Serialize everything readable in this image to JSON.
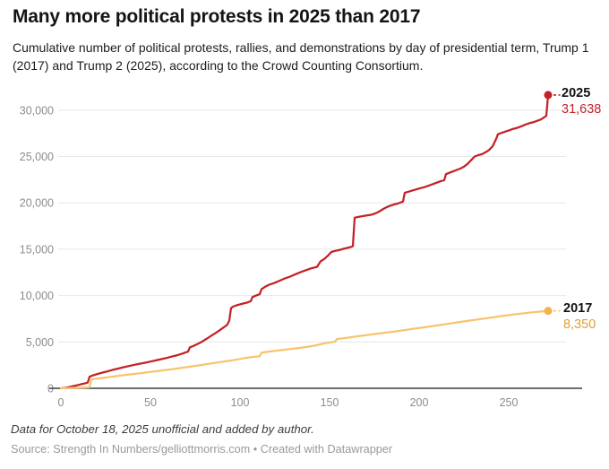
{
  "header": {
    "title": "Many more political protests in 2025 than 2017",
    "subtitle": "Cumulative number of political protests, rallies, and demonstrations by day of presidential term, Trump 1 (2017) and Trump 2 (2025), according to the Crowd Counting Consortium."
  },
  "footer": {
    "note": "Data for October 18, 2025 unofficial and added by author.",
    "source": "Source: Strength In Numbers/gelliottmorris.com • Created with Datawrapper"
  },
  "colors": {
    "accent_2025": "#c42127",
    "line_2017": "#f8c46d",
    "dot_2017": "#f3b34f",
    "label_2017": "#dca13c",
    "gridline": "#e8e8e8",
    "baseline": "#3f3f3f",
    "tick_label": "#8c8c8c"
  },
  "chart_data": {
    "type": "line",
    "title": "Many more political protests in 2025 than 2017",
    "xlabel": "",
    "ylabel": "",
    "grid": "horizontal",
    "legend_position": "end-of-line-labels",
    "xlim": [
      0,
      280
    ],
    "ylim": [
      0,
      32500
    ],
    "x_ticks": [
      {
        "value": 0,
        "label": "0"
      },
      {
        "value": 50,
        "label": "50"
      },
      {
        "value": 100,
        "label": "100"
      },
      {
        "value": 150,
        "label": "150"
      },
      {
        "value": 200,
        "label": "200"
      },
      {
        "value": 250,
        "label": "250"
      }
    ],
    "y_ticks": [
      {
        "value": 0,
        "label": "0"
      },
      {
        "value": 5000,
        "label": "5,000"
      },
      {
        "value": 10000,
        "label": "10,000"
      },
      {
        "value": 15000,
        "label": "15,000"
      },
      {
        "value": 20000,
        "label": "20,000"
      },
      {
        "value": 25000,
        "label": "25,000"
      },
      {
        "value": 30000,
        "label": "30,000"
      }
    ],
    "series": [
      {
        "name": "2025",
        "label_value": "31,638",
        "final_value": 31638,
        "line_color": "#c42127",
        "dot_color": "#c42127",
        "value_color": "#c42127",
        "points": [
          [
            0,
            0
          ],
          [
            2,
            40
          ],
          [
            4,
            110
          ],
          [
            6,
            190
          ],
          [
            8,
            280
          ],
          [
            10,
            370
          ],
          [
            12,
            470
          ],
          [
            14,
            560
          ],
          [
            15,
            620
          ],
          [
            16,
            1250
          ],
          [
            18,
            1400
          ],
          [
            20,
            1520
          ],
          [
            23,
            1680
          ],
          [
            26,
            1830
          ],
          [
            29,
            1990
          ],
          [
            32,
            2130
          ],
          [
            35,
            2270
          ],
          [
            38,
            2400
          ],
          [
            41,
            2530
          ],
          [
            44,
            2650
          ],
          [
            47,
            2760
          ],
          [
            50,
            2880
          ],
          [
            53,
            3010
          ],
          [
            56,
            3140
          ],
          [
            59,
            3270
          ],
          [
            62,
            3420
          ],
          [
            65,
            3570
          ],
          [
            68,
            3750
          ],
          [
            70,
            3900
          ],
          [
            71,
            3960
          ],
          [
            72,
            4420
          ],
          [
            74,
            4570
          ],
          [
            76,
            4750
          ],
          [
            78,
            4940
          ],
          [
            80,
            5180
          ],
          [
            82,
            5420
          ],
          [
            84,
            5680
          ],
          [
            86,
            5920
          ],
          [
            88,
            6170
          ],
          [
            90,
            6450
          ],
          [
            92,
            6720
          ],
          [
            93,
            6900
          ],
          [
            94,
            7300
          ],
          [
            95,
            8650
          ],
          [
            96,
            8800
          ],
          [
            98,
            8950
          ],
          [
            100,
            9050
          ],
          [
            102,
            9150
          ],
          [
            104,
            9250
          ],
          [
            106,
            9400
          ],
          [
            107,
            9850
          ],
          [
            109,
            10000
          ],
          [
            111,
            10150
          ],
          [
            112,
            10700
          ],
          [
            114,
            10950
          ],
          [
            116,
            11150
          ],
          [
            119,
            11350
          ],
          [
            122,
            11600
          ],
          [
            125,
            11850
          ],
          [
            128,
            12050
          ],
          [
            131,
            12300
          ],
          [
            134,
            12550
          ],
          [
            137,
            12750
          ],
          [
            140,
            12950
          ],
          [
            143,
            13100
          ],
          [
            145,
            13700
          ],
          [
            147,
            13950
          ],
          [
            149,
            14300
          ],
          [
            151,
            14700
          ],
          [
            153,
            14820
          ],
          [
            155,
            14900
          ],
          [
            157,
            15000
          ],
          [
            159,
            15100
          ],
          [
            161,
            15200
          ],
          [
            163,
            15320
          ],
          [
            164,
            18400
          ],
          [
            166,
            18480
          ],
          [
            168,
            18550
          ],
          [
            170,
            18620
          ],
          [
            172,
            18680
          ],
          [
            174,
            18760
          ],
          [
            176,
            18900
          ],
          [
            178,
            19100
          ],
          [
            180,
            19350
          ],
          [
            182,
            19550
          ],
          [
            184,
            19700
          ],
          [
            186,
            19830
          ],
          [
            188,
            19930
          ],
          [
            190,
            20060
          ],
          [
            191,
            20150
          ],
          [
            192,
            21100
          ],
          [
            194,
            21200
          ],
          [
            196,
            21320
          ],
          [
            198,
            21430
          ],
          [
            200,
            21550
          ],
          [
            203,
            21700
          ],
          [
            206,
            21900
          ],
          [
            209,
            22120
          ],
          [
            212,
            22330
          ],
          [
            214,
            22450
          ],
          [
            215,
            23100
          ],
          [
            217,
            23250
          ],
          [
            219,
            23400
          ],
          [
            221,
            23550
          ],
          [
            223,
            23700
          ],
          [
            225,
            23900
          ],
          [
            227,
            24200
          ],
          [
            229,
            24600
          ],
          [
            231,
            25000
          ],
          [
            233,
            25150
          ],
          [
            235,
            25250
          ],
          [
            237,
            25450
          ],
          [
            239,
            25700
          ],
          [
            241,
            26100
          ],
          [
            243,
            26900
          ],
          [
            244,
            27400
          ],
          [
            246,
            27550
          ],
          [
            248,
            27680
          ],
          [
            250,
            27800
          ],
          [
            252,
            27950
          ],
          [
            254,
            28050
          ],
          [
            256,
            28180
          ],
          [
            258,
            28330
          ],
          [
            260,
            28500
          ],
          [
            262,
            28620
          ],
          [
            264,
            28720
          ],
          [
            266,
            28850
          ],
          [
            268,
            29000
          ],
          [
            270,
            29250
          ],
          [
            271,
            29400
          ],
          [
            272,
            31638
          ]
        ]
      },
      {
        "name": "2017",
        "label_value": "8,350",
        "final_value": 8350,
        "line_color": "#f8c46d",
        "dot_color": "#f3b34f",
        "value_color": "#dca13c",
        "points": [
          [
            0,
            0
          ],
          [
            4,
            25
          ],
          [
            8,
            50
          ],
          [
            12,
            75
          ],
          [
            15,
            95
          ],
          [
            16,
            120
          ],
          [
            17,
            950
          ],
          [
            20,
            1040
          ],
          [
            24,
            1130
          ],
          [
            28,
            1240
          ],
          [
            32,
            1340
          ],
          [
            36,
            1440
          ],
          [
            40,
            1530
          ],
          [
            44,
            1620
          ],
          [
            48,
            1720
          ],
          [
            52,
            1810
          ],
          [
            56,
            1910
          ],
          [
            60,
            2010
          ],
          [
            64,
            2110
          ],
          [
            68,
            2220
          ],
          [
            72,
            2330
          ],
          [
            76,
            2450
          ],
          [
            80,
            2560
          ],
          [
            84,
            2680
          ],
          [
            88,
            2800
          ],
          [
            92,
            2910
          ],
          [
            96,
            3030
          ],
          [
            100,
            3160
          ],
          [
            104,
            3300
          ],
          [
            107,
            3380
          ],
          [
            109,
            3420
          ],
          [
            111,
            3460
          ],
          [
            112,
            3850
          ],
          [
            115,
            3930
          ],
          [
            118,
            4000
          ],
          [
            121,
            4070
          ],
          [
            124,
            4150
          ],
          [
            128,
            4240
          ],
          [
            132,
            4330
          ],
          [
            136,
            4430
          ],
          [
            140,
            4550
          ],
          [
            143,
            4650
          ],
          [
            146,
            4800
          ],
          [
            149,
            4910
          ],
          [
            152,
            4990
          ],
          [
            153,
            5020
          ],
          [
            154,
            5300
          ],
          [
            157,
            5380
          ],
          [
            160,
            5460
          ],
          [
            163,
            5540
          ],
          [
            166,
            5620
          ],
          [
            170,
            5720
          ],
          [
            174,
            5820
          ],
          [
            178,
            5920
          ],
          [
            182,
            6020
          ],
          [
            186,
            6120
          ],
          [
            190,
            6230
          ],
          [
            194,
            6340
          ],
          [
            198,
            6450
          ],
          [
            202,
            6560
          ],
          [
            206,
            6670
          ],
          [
            210,
            6780
          ],
          [
            214,
            6890
          ],
          [
            218,
            7010
          ],
          [
            222,
            7130
          ],
          [
            226,
            7240
          ],
          [
            230,
            7350
          ],
          [
            234,
            7460
          ],
          [
            238,
            7570
          ],
          [
            242,
            7680
          ],
          [
            246,
            7790
          ],
          [
            250,
            7890
          ],
          [
            254,
            7990
          ],
          [
            258,
            8080
          ],
          [
            262,
            8170
          ],
          [
            266,
            8250
          ],
          [
            269,
            8300
          ],
          [
            272,
            8350
          ]
        ]
      }
    ]
  }
}
